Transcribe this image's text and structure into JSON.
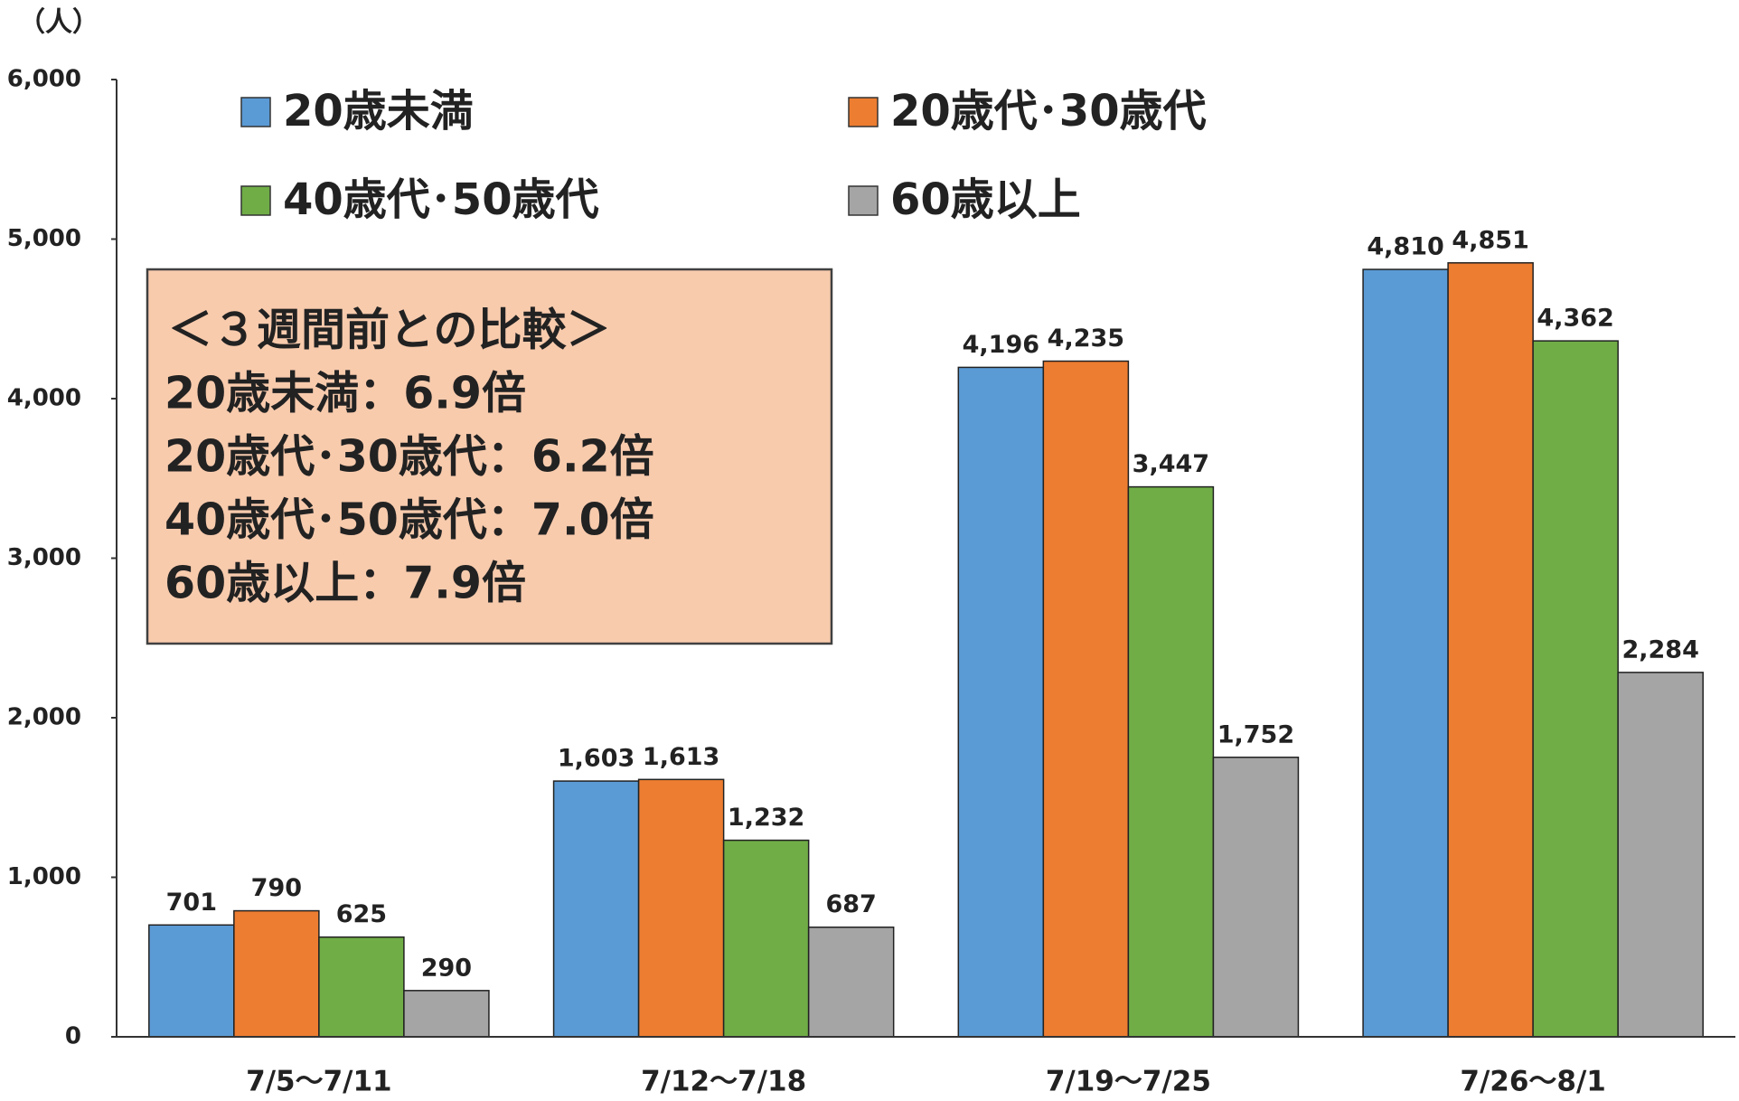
{
  "chart_data": {
    "type": "bar",
    "unit_label": "（人）",
    "categories": [
      "7/5〜7/11",
      "7/12〜7/18",
      "7/19〜7/25",
      "7/26〜8/1"
    ],
    "series": [
      {
        "name": "20歳未満",
        "color": "#5b9bd5",
        "values": [
          701,
          1603,
          4196,
          4810
        ],
        "value_labels": [
          "701",
          "1,603",
          "4,196",
          "4,810"
        ]
      },
      {
        "name": "20歳代･30歳代",
        "color": "#ed7d31",
        "values": [
          790,
          1613,
          4235,
          4851
        ],
        "value_labels": [
          "790",
          "1,613",
          "4,235",
          "4,851"
        ]
      },
      {
        "name": "40歳代･50歳代",
        "color": "#70ad47",
        "values": [
          625,
          1232,
          3447,
          4362
        ],
        "value_labels": [
          "625",
          "1,232",
          "3,447",
          "4,362"
        ]
      },
      {
        "name": "60歳以上",
        "color": "#a5a5a5",
        "values": [
          290,
          687,
          1752,
          2284
        ],
        "value_labels": [
          "290",
          "687",
          "1,752",
          "2,284"
        ]
      }
    ],
    "ylim": [
      0,
      6000
    ],
    "yticks": [
      0,
      {
        "value": 1000,
        "label": "1,000"
      },
      {
        "value": 2000,
        "label": "2,000"
      },
      {
        "value": 3000,
        "label": "3,000"
      },
      {
        "value": 4000,
        "label": "4,000"
      },
      {
        "value": 5000,
        "label": "5,000"
      },
      {
        "value": 6000,
        "label": "6,000"
      }
    ],
    "grid": false,
    "annotation": {
      "title": "＜３週間前との比較＞",
      "lines": [
        "20歳未満：6.9倍",
        "20歳代･30歳代：6.2倍",
        "40歳代･50歳代：7.0倍",
        "60歳以上：7.9倍"
      ]
    }
  }
}
